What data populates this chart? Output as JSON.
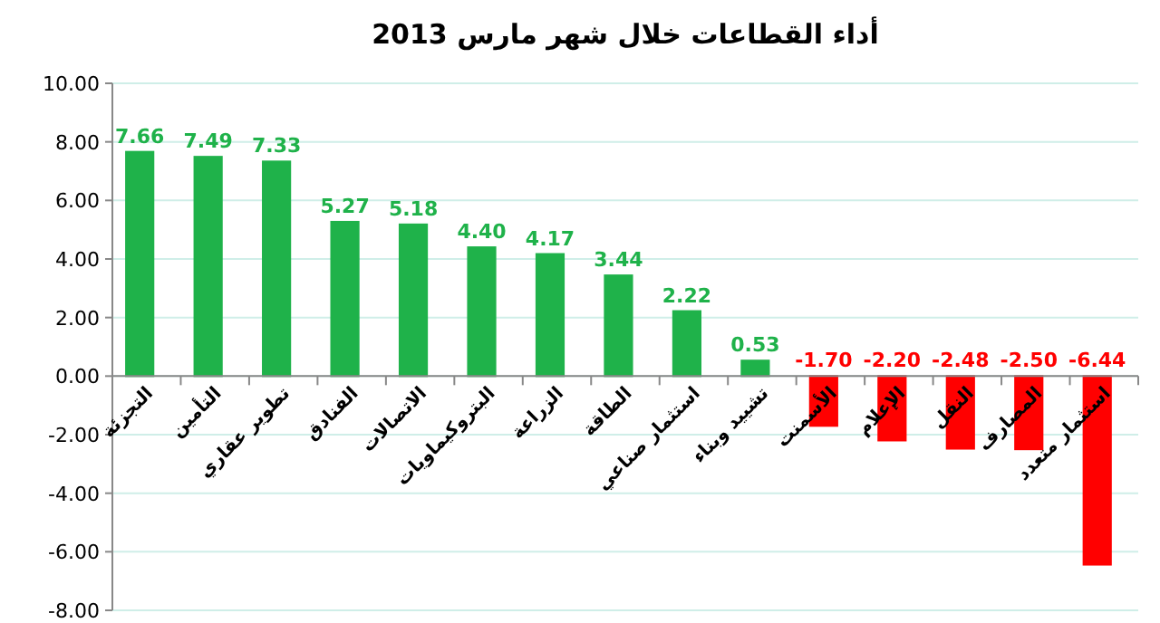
{
  "chart_data": {
    "type": "bar",
    "title": "أداء القطاعات خلال شهر مارس 2013",
    "categories": [
      "التجزئة",
      "التأمين",
      "تطوير عقاري",
      "الفنادق",
      "الاتصالات",
      "البتروكيماويات",
      "الزراعة",
      "الطاقة",
      "استثمار صناعي",
      "تشييد وبناء",
      "الأسمنت",
      "الإعلام",
      "النقل",
      "المصارف",
      "استثمار متعدد"
    ],
    "values": [
      7.66,
      7.49,
      7.33,
      5.27,
      5.18,
      4.4,
      4.17,
      3.44,
      2.22,
      0.53,
      -1.7,
      -2.2,
      -2.48,
      -2.5,
      -6.44
    ],
    "value_labels": [
      "7.66",
      "7.49",
      "7.33",
      "5.27",
      "5.18",
      "4.40",
      "4.17",
      "3.44",
      "2.22",
      "0.53",
      "-1.70",
      "-2.20",
      "-2.48",
      "-2.50",
      "-6.44"
    ],
    "colors": [
      "#1fb24a",
      "#1fb24a",
      "#1fb24a",
      "#1fb24a",
      "#1fb24a",
      "#1fb24a",
      "#1fb24a",
      "#1fb24a",
      "#1fb24a",
      "#1fb24a",
      "#ff0000",
      "#ff0000",
      "#ff0000",
      "#ff0000",
      "#ff0000"
    ],
    "ylim": [
      -8,
      10
    ],
    "yticks": [
      {
        "value": -8,
        "label": "-8.00"
      },
      {
        "value": -6,
        "label": "-6.00"
      },
      {
        "value": -4,
        "label": "-4.00"
      },
      {
        "value": -2,
        "label": "-2.00"
      },
      {
        "value": 0,
        "label": "0.00"
      },
      {
        "value": 2,
        "label": "2.00"
      },
      {
        "value": 4,
        "label": "4.00"
      },
      {
        "value": 6,
        "label": "6.00"
      },
      {
        "value": 8,
        "label": "8.00"
      },
      {
        "value": 10,
        "label": "10.00"
      }
    ],
    "grid": "y"
  }
}
